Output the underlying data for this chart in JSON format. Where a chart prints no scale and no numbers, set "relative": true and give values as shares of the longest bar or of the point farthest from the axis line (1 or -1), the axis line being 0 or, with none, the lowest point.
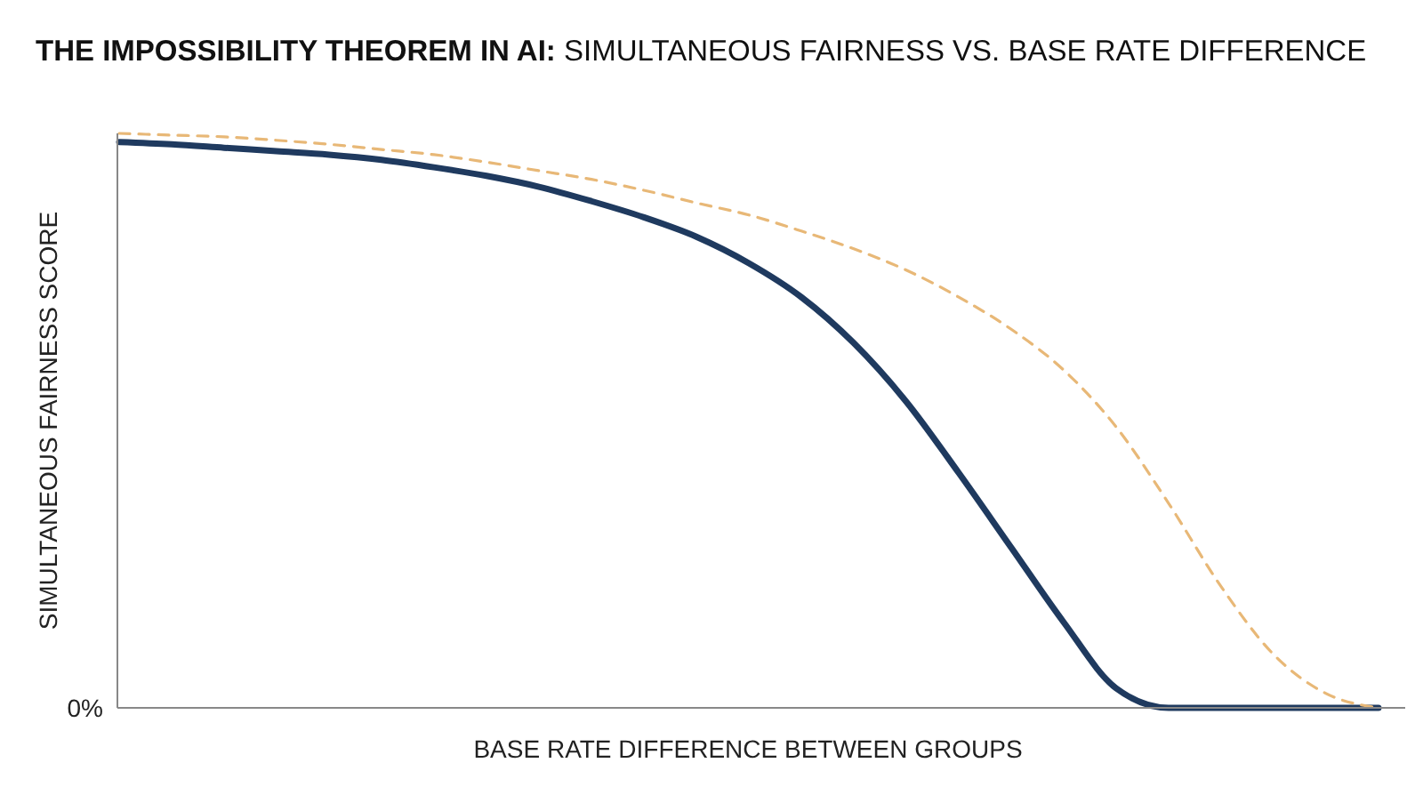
{
  "chart_data": {
    "type": "line",
    "title": "THE IMPOSSIBILITY THEOREM IN AI: SIMULTANEOUS FAIRNESS VS. BASE RATE DIFFERENCE",
    "xlabel": "BASE RATE DIFFERENCE BETWEEN GROUPS",
    "ylabel": "SIMULTANEOUS FAIRNESS SCORE",
    "relative": true,
    "annotations": [
      "0%"
    ],
    "categories": [
      null,
      null,
      null,
      null,
      null,
      null,
      null,
      null,
      null,
      null,
      null,
      null,
      null,
      null,
      null,
      null,
      null,
      null,
      null,
      null,
      null,
      null,
      null,
      null,
      null
    ],
    "grid": false,
    "series": [
      {
        "color": "#1f3a5f",
        "line_style": "solid",
        "values": [
          0.985,
          0.981,
          0.975,
          0.969,
          0.963,
          0.954,
          0.941,
          0.926,
          0.907,
          0.882,
          0.854,
          0.82,
          0.774,
          0.715,
          0.635,
          0.533,
          0.409,
          0.279,
          0.149,
          0.034,
          0,
          0,
          0,
          0,
          0
        ]
      },
      {
        "color": "#e8b877",
        "line_style": "dashed",
        "values": [
          1,
          0.997,
          0.994,
          0.988,
          0.981,
          0.972,
          0.963,
          0.95,
          0.935,
          0.92,
          0.901,
          0.879,
          0.858,
          0.83,
          0.799,
          0.762,
          0.715,
          0.659,
          0.588,
          0.489,
          0.356,
          0.211,
          0.093,
          0.025,
          0
        ]
      }
    ]
  }
}
